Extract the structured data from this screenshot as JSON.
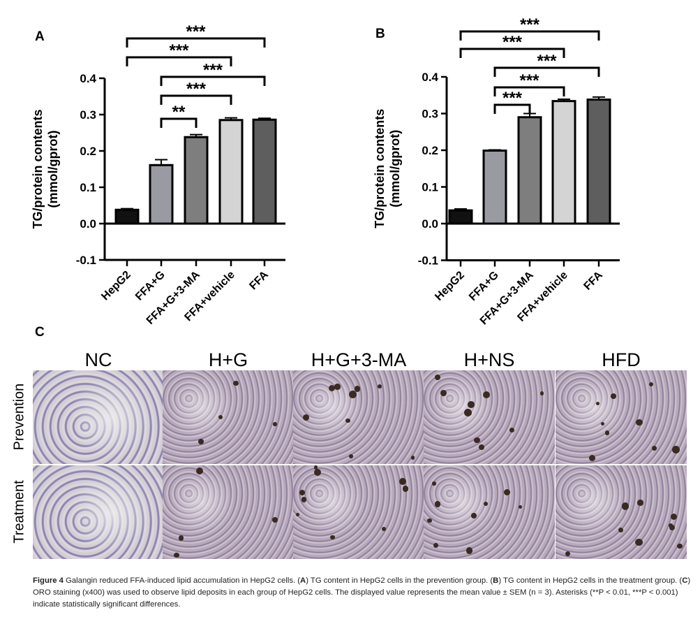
{
  "chart_data": [
    {
      "panel": "A",
      "type": "bar",
      "ylabel": "TG/protein contents",
      "ylabel2": "(mmol/gprot)",
      "ylim": [
        -0.1,
        0.4
      ],
      "yticks": [
        "0.4",
        "0.3",
        "0.2",
        "0.1",
        "0.0",
        "-0.1"
      ],
      "ytick_values": [
        0.4,
        0.3,
        0.2,
        0.1,
        0.0,
        -0.1
      ],
      "categories": [
        "HepG2",
        "FFA+G",
        "FFA+G+3-MA",
        "FFA+vehicle",
        "FFA"
      ],
      "values": [
        0.038,
        0.161,
        0.238,
        0.285,
        0.286
      ],
      "errors": [
        0.003,
        0.015,
        0.007,
        0.006,
        0.004
      ],
      "colors": [
        "#111111",
        "#9a9aa2",
        "#7e7e7e",
        "#d4d4d4",
        "#5e5e5e"
      ],
      "comparisons": [
        {
          "from": 0,
          "to": 4,
          "label": "***"
        },
        {
          "from": 0,
          "to": 3,
          "label": "***"
        },
        {
          "from": 1,
          "to": 4,
          "label": "***"
        },
        {
          "from": 1,
          "to": 3,
          "label": "***"
        },
        {
          "from": 1,
          "to": 2,
          "label": "**"
        }
      ]
    },
    {
      "panel": "B",
      "type": "bar",
      "ylabel": "TG/protein contents",
      "ylabel2": "(mmol/gprot)",
      "ylim": [
        -0.1,
        0.4
      ],
      "yticks": [
        "0.4",
        "0.3",
        "0.2",
        "0.1",
        "0.0",
        "-0.1"
      ],
      "ytick_values": [
        0.4,
        0.3,
        0.2,
        0.1,
        0.0,
        -0.1
      ],
      "categories": [
        "HepG2",
        "FFA+G",
        "FFA+G+3-MA",
        "FFA+vehicle",
        "FFA"
      ],
      "values": [
        0.036,
        0.199,
        0.29,
        0.334,
        0.338
      ],
      "errors": [
        0.004,
        0.002,
        0.01,
        0.005,
        0.007
      ],
      "colors": [
        "#111111",
        "#9a9aa2",
        "#7e7e7e",
        "#d4d4d4",
        "#5e5e5e"
      ],
      "comparisons": [
        {
          "from": 0,
          "to": 4,
          "label": "***"
        },
        {
          "from": 0,
          "to": 3,
          "label": "***"
        },
        {
          "from": 1,
          "to": 4,
          "label": "***"
        },
        {
          "from": 1,
          "to": 3,
          "label": "***"
        },
        {
          "from": 1,
          "to": 2,
          "label": "***"
        }
      ]
    }
  ],
  "panel_labels": {
    "a": "A",
    "b": "B",
    "c": "C"
  },
  "micrographs": {
    "columns": [
      "NC",
      "H+G",
      "H+G+3-MA",
      "H+NS",
      "HFD"
    ],
    "rows": [
      "Prevention",
      "Treatment"
    ]
  },
  "caption": {
    "figure": "Figure 4",
    "p1": " Galangin reduced FFA-induced lipid accumulation in HepG2 cells. (",
    "a": "A",
    "p2": ") TG content in HepG2 cells in the prevention group. (",
    "b": "B",
    "p3": ") TG content in HepG2 cells in the treatment group. (",
    "c": "C",
    "p4": ") ORO staining (x400) was used to observe lipid deposits in each group of HepG2 cells. The displayed value represents the mean value ± SEM (n = 3). Asterisks (**P < 0.01, ***P < 0.001) indicate statistically significant differences."
  }
}
